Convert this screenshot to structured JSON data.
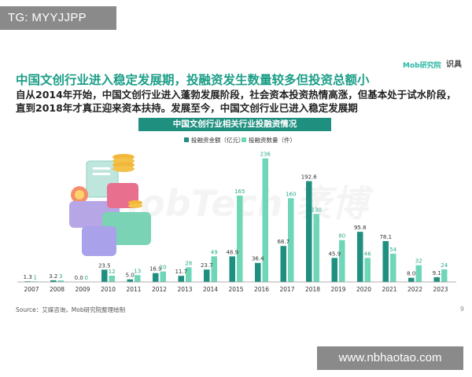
{
  "overlay_top": "TG: MYYJJPP",
  "overlay_bottom": "www.nbhaotao.com",
  "brand": "Mob研究院",
  "brand_secondary": "识具",
  "slide_title": "中国文创行业进入稳定发展期，投融资发生数量较多但投资总额小",
  "slide_description": "自从2014年开始，中国文创行业进入蓬勃发展阶段，社会资本投资热情高涨，但基本处于试水阶段，直到2018年才真正迎来资本扶持。发展至今，中国文创行业已进入稳定发展期",
  "watermark": "MobTech 袤博",
  "source": "Source：艾媒咨询，Mob研究院整理绘制",
  "page_number": "9",
  "chart_data": {
    "type": "bar",
    "title": "中国文创行业相关行业投融资情况",
    "categories": [
      "2007",
      "2008",
      "2009",
      "2010",
      "2011",
      "2012",
      "2013",
      "2014",
      "2015",
      "2016",
      "2017",
      "2018",
      "2019",
      "2020",
      "2021",
      "2022",
      "2023"
    ],
    "series": [
      {
        "name": "投融资金额（亿元）",
        "color": "#1f8f80",
        "values": [
          1.3,
          3.2,
          0.0,
          23.5,
          5.0,
          16.9,
          11.7,
          23.7,
          48.9,
          36.4,
          68.7,
          192.6,
          45.9,
          95.8,
          78.1,
          8.0,
          9.1
        ]
      },
      {
        "name": "投融资数量（件）",
        "color": "#6fd6b8",
        "values": [
          1,
          3,
          0,
          12,
          13,
          20,
          28,
          49,
          165,
          236,
          160,
          130,
          80,
          46,
          54,
          32,
          24
        ]
      }
    ],
    "ylim": [
      0,
      240
    ],
    "grid": false,
    "legend_position": "top"
  }
}
